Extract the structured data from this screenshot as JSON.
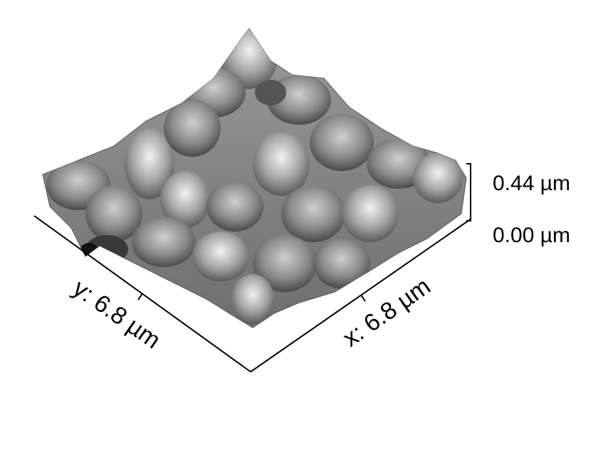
{
  "afm_plot": {
    "z_scale": {
      "top_label": "0.44 µm",
      "bottom_label": "0.00 µm"
    },
    "y_axis": {
      "label": "y: 6.8 µm"
    },
    "x_axis": {
      "label": "x: 6.8 µm"
    }
  }
}
